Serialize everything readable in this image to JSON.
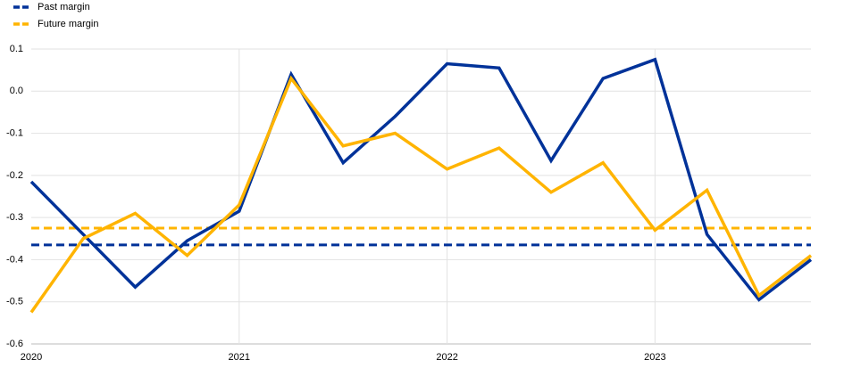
{
  "chart_data": {
    "type": "line",
    "categories": [
      "2020",
      null,
      null,
      null,
      "2021",
      null,
      null,
      null,
      "2022",
      null,
      null,
      null,
      "2023",
      null,
      null,
      null
    ],
    "series": [
      {
        "name": "Past margin",
        "color": "#003299",
        "mean": -0.365,
        "values": [
          -0.215,
          -0.34,
          -0.465,
          -0.355,
          -0.285,
          0.04,
          -0.17,
          -0.06,
          0.065,
          0.055,
          -0.165,
          0.03,
          0.075,
          -0.34,
          -0.495,
          -0.4
        ]
      },
      {
        "name": "Future margin",
        "color": "#ffb400",
        "mean": -0.325,
        "values": [
          -0.525,
          -0.35,
          -0.29,
          -0.39,
          -0.27,
          0.03,
          -0.13,
          -0.1,
          -0.185,
          -0.135,
          -0.24,
          -0.17,
          -0.33,
          -0.235,
          -0.485,
          -0.39
        ]
      }
    ],
    "ylim": [
      -0.6,
      0.1
    ],
    "yticks": [
      0.1,
      {
        "value": 0,
        "label": "0.0"
      },
      -0.1,
      -0.2,
      -0.3,
      -0.4,
      -0.5,
      -0.6
    ],
    "grid": true
  }
}
